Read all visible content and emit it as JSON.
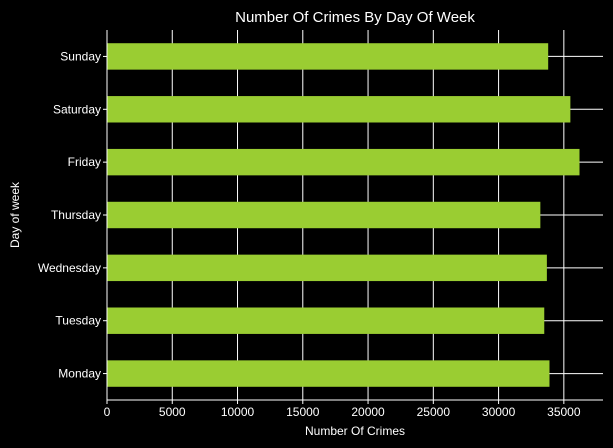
{
  "chart_data": {
    "type": "bar",
    "orientation": "horizontal",
    "title": "Number Of Crimes By Day Of Week",
    "xlabel": "Number Of Crimes",
    "ylabel": "Day of week",
    "categories": [
      "Monday",
      "Tuesday",
      "Wednesday",
      "Thursday",
      "Friday",
      "Saturday",
      "Sunday"
    ],
    "values": [
      33900,
      33500,
      33700,
      33200,
      36200,
      35500,
      33800
    ],
    "xlim": [
      0,
      38000
    ],
    "xticks": [
      0,
      5000,
      10000,
      15000,
      20000,
      25000,
      30000,
      35000
    ],
    "grid": true,
    "colors": {
      "bar": "#9acd32",
      "background": "#000000",
      "grid": "#ffffff",
      "text": "#ffffff"
    }
  }
}
